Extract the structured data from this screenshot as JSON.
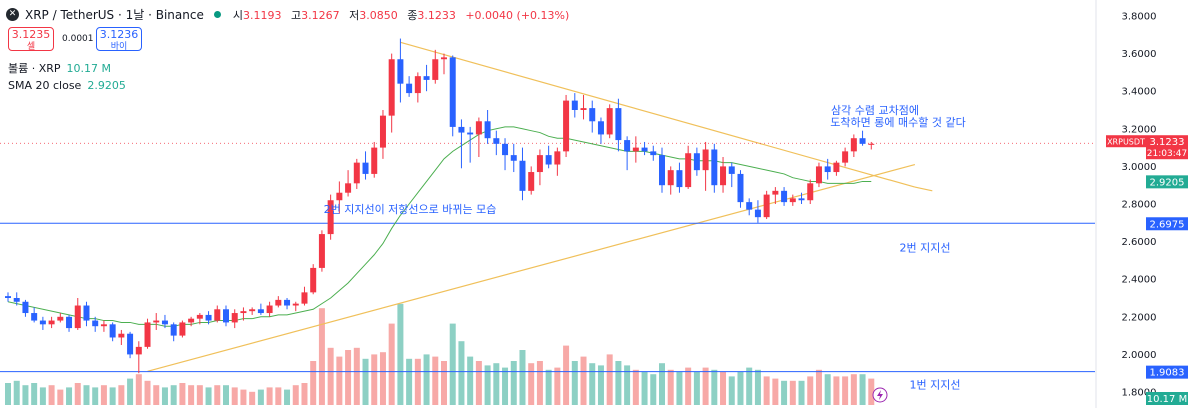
{
  "header": {
    "title": "XRP / TetherUS · 1날 · Binance",
    "ohlc": [
      {
        "label": "시",
        "value": "3.1193"
      },
      {
        "label": "고",
        "value": "3.1267"
      },
      {
        "label": "저",
        "value": "3.0850"
      },
      {
        "label": "종",
        "value": "3.1233"
      }
    ],
    "change": "+0.0040 (+0.13%)"
  },
  "trade": {
    "sell_price": "3.1235",
    "sell_label": "셀",
    "spread": "0.0001",
    "buy_price": "3.1236",
    "buy_label": "바이"
  },
  "indicators": {
    "volume_label": "볼륨 · XRP",
    "volume_value": "10.17 M",
    "sma_label": "SMA 20 close",
    "sma_value": "2.9205"
  },
  "colors": {
    "up": "#f23645",
    "up_body": "#f23645",
    "down": "#2962ff",
    "sma": "#4caf50",
    "vol_up": "#f7a9a7",
    "vol_down": "#8dd0c4",
    "trend": "#f0c05a",
    "hline": "#2962ff"
  },
  "chart_data": {
    "type": "candlestick",
    "symbol": "XRPUSDT",
    "ylim": [
      1.8,
      3.8
    ],
    "y_ticks": [
      "3.8000",
      "3.6000",
      "3.4000",
      "3.2000",
      "3.0000",
      "2.8000",
      "2.6000",
      "2.4000",
      "2.2000",
      "2.0000",
      "1.8000"
    ],
    "price_tag": {
      "symbol": "XRPUSDT",
      "price": "3.1233",
      "countdown": "21:03:47",
      "value": 3.1233
    },
    "sma_tag": {
      "price": "2.9205",
      "value": 2.9205
    },
    "hlines": [
      {
        "value": 2.6975,
        "tag": "2.6975",
        "label": "2번 지지선"
      },
      {
        "value": 1.9083,
        "tag": "1.9083",
        "label": "1번 지지선"
      }
    ],
    "volume_tag": "10.17 M",
    "annotations": [
      {
        "text": "삼각 수렴 교차점에",
        "line": 1
      },
      {
        "text": "도착하면 롱에 매수할 것 같다",
        "line": 2
      },
      {
        "text": "2번 지지선이 저항선으로 바뀌는 모습",
        "line": 3
      }
    ],
    "candles": [
      [
        2.31,
        2.33,
        2.28,
        2.3
      ],
      [
        2.3,
        2.33,
        2.26,
        2.28
      ],
      [
        2.28,
        2.29,
        2.2,
        2.22
      ],
      [
        2.22,
        2.25,
        2.17,
        2.18
      ],
      [
        2.18,
        2.2,
        2.13,
        2.16
      ],
      [
        2.16,
        2.2,
        2.14,
        2.18
      ],
      [
        2.18,
        2.22,
        2.17,
        2.2
      ],
      [
        2.2,
        2.21,
        2.12,
        2.14
      ],
      [
        2.14,
        2.3,
        2.13,
        2.26
      ],
      [
        2.26,
        2.28,
        2.15,
        2.18
      ],
      [
        2.18,
        2.2,
        2.12,
        2.15
      ],
      [
        2.15,
        2.18,
        2.12,
        2.16
      ],
      [
        2.16,
        2.17,
        2.07,
        2.09
      ],
      [
        2.09,
        2.13,
        2.05,
        2.11
      ],
      [
        2.11,
        2.12,
        1.98,
        2.0
      ],
      [
        2.0,
        2.07,
        1.9,
        2.04
      ],
      [
        2.04,
        2.19,
        2.03,
        2.17
      ],
      [
        2.17,
        2.22,
        2.13,
        2.18
      ],
      [
        2.18,
        2.21,
        2.14,
        2.16
      ],
      [
        2.16,
        2.17,
        2.07,
        2.1
      ],
      [
        2.1,
        2.18,
        2.09,
        2.17
      ],
      [
        2.17,
        2.2,
        2.15,
        2.19
      ],
      [
        2.19,
        2.22,
        2.16,
        2.21
      ],
      [
        2.21,
        2.23,
        2.16,
        2.18
      ],
      [
        2.18,
        2.26,
        2.17,
        2.24
      ],
      [
        2.24,
        2.26,
        2.15,
        2.17
      ],
      [
        2.17,
        2.24,
        2.14,
        2.22
      ],
      [
        2.22,
        2.25,
        2.18,
        2.23
      ],
      [
        2.23,
        2.25,
        2.21,
        2.24
      ],
      [
        2.24,
        2.27,
        2.21,
        2.22
      ],
      [
        2.22,
        2.28,
        2.2,
        2.26
      ],
      [
        2.26,
        2.31,
        2.25,
        2.29
      ],
      [
        2.29,
        2.3,
        2.24,
        2.26
      ],
      [
        2.26,
        2.28,
        2.23,
        2.27
      ],
      [
        2.27,
        2.36,
        2.26,
        2.33
      ],
      [
        2.33,
        2.48,
        2.32,
        2.46
      ],
      [
        2.46,
        2.66,
        2.44,
        2.64
      ],
      [
        2.64,
        2.85,
        2.61,
        2.82
      ],
      [
        2.82,
        2.92,
        2.75,
        2.86
      ],
      [
        2.86,
        2.98,
        2.84,
        2.91
      ],
      [
        2.91,
        3.04,
        2.88,
        3.02
      ],
      [
        3.02,
        3.08,
        2.93,
        2.96
      ],
      [
        2.96,
        3.13,
        2.94,
        3.1
      ],
      [
        3.1,
        3.3,
        3.04,
        3.27
      ],
      [
        3.27,
        3.6,
        3.18,
        3.57
      ],
      [
        3.57,
        3.68,
        3.34,
        3.44
      ],
      [
        3.44,
        3.48,
        3.37,
        3.39
      ],
      [
        3.39,
        3.5,
        3.34,
        3.48
      ],
      [
        3.48,
        3.54,
        3.4,
        3.46
      ],
      [
        3.46,
        3.62,
        3.44,
        3.57
      ],
      [
        3.57,
        3.6,
        3.49,
        3.58
      ],
      [
        3.58,
        3.59,
        3.16,
        3.21
      ],
      [
        3.21,
        3.25,
        2.99,
        3.18
      ],
      [
        3.18,
        3.21,
        3.02,
        3.17
      ],
      [
        3.17,
        3.26,
        3.05,
        3.24
      ],
      [
        3.24,
        3.3,
        3.12,
        3.15
      ],
      [
        3.15,
        3.19,
        3.06,
        3.12
      ],
      [
        3.12,
        3.15,
        2.98,
        3.06
      ],
      [
        3.06,
        3.12,
        2.97,
        3.03
      ],
      [
        3.03,
        3.1,
        2.82,
        2.87
      ],
      [
        2.87,
        3.0,
        2.85,
        2.97
      ],
      [
        2.97,
        3.09,
        2.9,
        3.06
      ],
      [
        3.06,
        3.11,
        2.99,
        3.01
      ],
      [
        3.01,
        3.1,
        2.95,
        3.08
      ],
      [
        3.08,
        3.38,
        3.05,
        3.35
      ],
      [
        3.35,
        3.39,
        3.26,
        3.3
      ],
      [
        3.3,
        3.38,
        3.25,
        3.31
      ],
      [
        3.31,
        3.35,
        3.18,
        3.24
      ],
      [
        3.24,
        3.26,
        3.12,
        3.17
      ],
      [
        3.17,
        3.33,
        3.15,
        3.31
      ],
      [
        3.31,
        3.36,
        3.08,
        3.14
      ],
      [
        3.14,
        3.16,
        2.98,
        3.08
      ],
      [
        3.08,
        3.16,
        3.02,
        3.1
      ],
      [
        3.1,
        3.13,
        3.06,
        3.08
      ],
      [
        3.08,
        3.11,
        3.03,
        3.06
      ],
      [
        3.06,
        3.1,
        2.86,
        2.9
      ],
      [
        2.9,
        3.0,
        2.85,
        2.98
      ],
      [
        2.98,
        3.02,
        2.86,
        2.89
      ],
      [
        2.89,
        3.11,
        2.88,
        3.07
      ],
      [
        3.07,
        3.1,
        2.95,
        2.98
      ],
      [
        2.98,
        3.13,
        2.87,
        3.09
      ],
      [
        3.09,
        3.12,
        2.86,
        2.9
      ],
      [
        2.9,
        3.05,
        2.86,
        3.0
      ],
      [
        3.0,
        3.02,
        2.89,
        2.96
      ],
      [
        2.96,
        2.98,
        2.78,
        2.81
      ],
      [
        2.81,
        2.83,
        2.74,
        2.77
      ],
      [
        2.77,
        2.82,
        2.7,
        2.73
      ],
      [
        2.73,
        2.87,
        2.72,
        2.85
      ],
      [
        2.85,
        2.89,
        2.8,
        2.87
      ],
      [
        2.87,
        2.89,
        2.79,
        2.81
      ],
      [
        2.81,
        2.85,
        2.79,
        2.83
      ],
      [
        2.83,
        2.86,
        2.8,
        2.82
      ],
      [
        2.82,
        2.93,
        2.8,
        2.91
      ],
      [
        2.91,
        3.02,
        2.89,
        3.0
      ],
      [
        3.0,
        3.04,
        2.93,
        2.97
      ],
      [
        2.97,
        3.03,
        2.95,
        3.02
      ],
      [
        3.02,
        3.1,
        3.0,
        3.08
      ],
      [
        3.08,
        3.17,
        3.05,
        3.15
      ],
      [
        3.15,
        3.19,
        3.11,
        3.12
      ],
      [
        3.12,
        3.13,
        3.09,
        3.12
      ]
    ],
    "volumes": [
      0.5,
      0.55,
      0.45,
      0.5,
      0.4,
      0.45,
      0.35,
      0.4,
      0.5,
      0.45,
      0.4,
      0.45,
      0.4,
      0.45,
      0.6,
      0.7,
      0.55,
      0.45,
      0.4,
      0.45,
      0.5,
      0.45,
      0.45,
      0.4,
      0.45,
      0.45,
      0.4,
      0.35,
      0.3,
      0.35,
      0.4,
      0.4,
      0.35,
      0.45,
      0.5,
      1.0,
      2.2,
      1.3,
      1.1,
      1.25,
      1.3,
      1.05,
      1.15,
      1.2,
      1.85,
      2.3,
      1.05,
      1.05,
      1.15,
      1.1,
      1.0,
      1.85,
      1.45,
      1.1,
      1.0,
      0.9,
      0.95,
      0.85,
      1.0,
      1.25,
      0.95,
      1.0,
      0.8,
      0.85,
      1.35,
      1.0,
      1.1,
      0.95,
      0.9,
      1.15,
      1.0,
      0.9,
      0.8,
      0.75,
      0.7,
      0.95,
      0.8,
      0.75,
      0.85,
      0.75,
      0.85,
      0.8,
      0.75,
      0.65,
      0.75,
      0.85,
      0.8,
      0.65,
      0.6,
      0.55,
      0.55,
      0.55,
      0.65,
      0.8,
      0.7,
      0.65,
      0.65,
      0.7,
      0.7,
      0.6
    ],
    "sma": [
      2.28,
      2.27,
      2.26,
      2.25,
      2.24,
      2.23,
      2.22,
      2.21,
      2.2,
      2.19,
      2.19,
      2.18,
      2.18,
      2.17,
      2.17,
      2.16,
      2.16,
      2.16,
      2.15,
      2.15,
      2.16,
      2.16,
      2.17,
      2.17,
      2.18,
      2.18,
      2.18,
      2.19,
      2.19,
      2.2,
      2.2,
      2.21,
      2.21,
      2.22,
      2.23,
      2.24,
      2.27,
      2.3,
      2.34,
      2.38,
      2.43,
      2.48,
      2.53,
      2.59,
      2.67,
      2.74,
      2.8,
      2.86,
      2.92,
      2.98,
      3.04,
      3.08,
      3.11,
      3.14,
      3.17,
      3.19,
      3.2,
      3.21,
      3.21,
      3.2,
      3.19,
      3.18,
      3.16,
      3.15,
      3.15,
      3.14,
      3.13,
      3.12,
      3.11,
      3.1,
      3.09,
      3.08,
      3.08,
      3.08,
      3.07,
      3.06,
      3.05,
      3.04,
      3.04,
      3.03,
      3.03,
      3.03,
      3.02,
      3.02,
      3.01,
      3.0,
      2.99,
      2.98,
      2.97,
      2.96,
      2.94,
      2.93,
      2.92,
      2.92,
      2.91,
      2.91,
      2.91,
      2.91,
      2.92,
      2.92
    ],
    "trendlines": [
      {
        "from": [
          45,
          3.66
        ],
        "to": [
          104,
          2.89
        ]
      },
      {
        "from": [
          16,
          1.91
        ],
        "to": [
          104,
          3.01
        ]
      }
    ]
  }
}
